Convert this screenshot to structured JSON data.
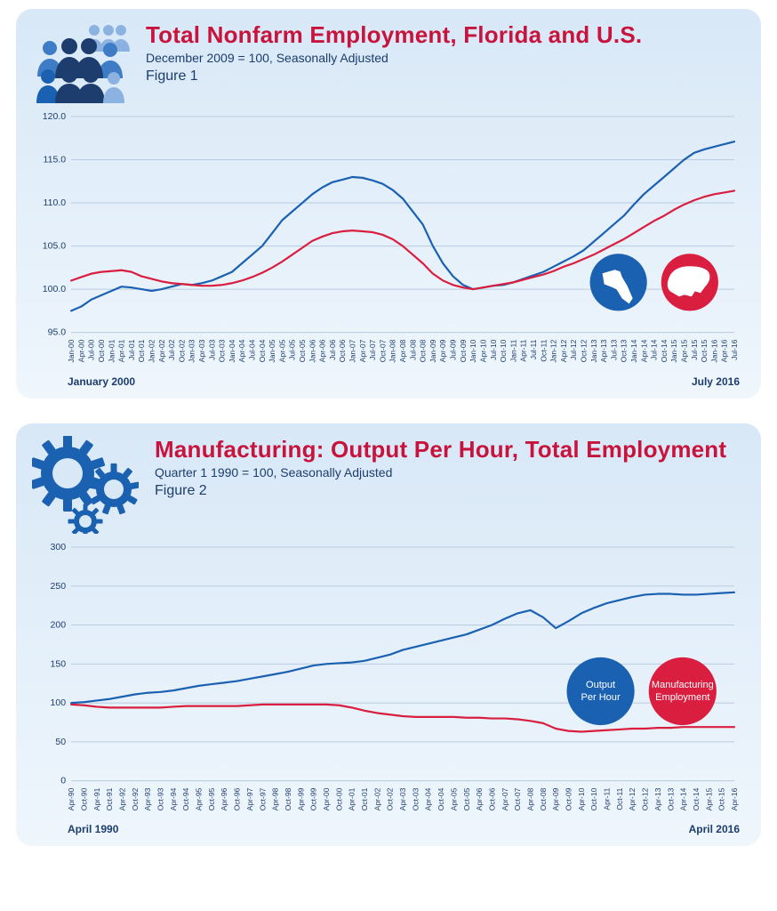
{
  "colors": {
    "blue": "#1b61b2",
    "midblue": "#3f7cc6",
    "lightblue": "#8bb2e0",
    "red": "#d91e3f",
    "darknavy": "#1c3d6e",
    "panel_top": "#d8e8f7",
    "panel_bot": "#eff6fc",
    "grid": "#b9cbe0"
  },
  "fig1": {
    "title": "Total Nonfarm Employment, Florida and U.S.",
    "subtitle": "December 2009 = 100, Seasonally Adjusted",
    "figlabel": "Figure 1",
    "range_left": "January 2000",
    "range_right": "July 2016",
    "ylim": [
      95.0,
      120.0
    ],
    "ytick_step": 5.0,
    "ytick_format": ".1f",
    "xlabels": [
      "Jan-00",
      "Apr-00",
      "Jul-00",
      "Oct-00",
      "Jan-01",
      "Apr-01",
      "Jul-01",
      "Oct-01",
      "Jan-02",
      "Apr-02",
      "Jul-02",
      "Oct-02",
      "Jan-03",
      "Apr-03",
      "Jul-03",
      "Oct-03",
      "Jan-04",
      "Apr-04",
      "Jul-04",
      "Oct-04",
      "Jan-05",
      "Apr-05",
      "Jul-05",
      "Oct-05",
      "Jan-06",
      "Apr-06",
      "Jul-06",
      "Oct-06",
      "Jan-07",
      "Apr-07",
      "Jul-07",
      "Oct-07",
      "Jan-08",
      "Apr-08",
      "Jul-08",
      "Oct-08",
      "Jan-09",
      "Apr-09",
      "Jul-09",
      "Oct-09",
      "Jan-10",
      "Apr-10",
      "Jul-10",
      "Oct-10",
      "Jan-11",
      "Apr-11",
      "Jul-11",
      "Oct-11",
      "Jan-12",
      "Apr-12",
      "Jul-12",
      "Oct-12",
      "Jan-13",
      "Apr-13",
      "Jul-13",
      "Oct-13",
      "Jan-14",
      "Apr-14",
      "Jul-14",
      "Oct-14",
      "Jan-15",
      "Apr-15",
      "Jul-15",
      "Oct-15",
      "Jan-16",
      "Apr-16",
      "Jul-16"
    ],
    "series": {
      "florida": {
        "color": "#1b61b2",
        "label": "Florida",
        "values": [
          97.5,
          98.0,
          98.8,
          99.3,
          99.8,
          100.3,
          100.2,
          100.0,
          99.8,
          100.0,
          100.3,
          100.6,
          100.5,
          100.7,
          101.0,
          101.5,
          102.0,
          103.0,
          104.0,
          105.0,
          106.5,
          108.0,
          109.0,
          110.0,
          111.0,
          111.8,
          112.4,
          112.7,
          113.0,
          112.9,
          112.6,
          112.2,
          111.5,
          110.5,
          109.0,
          107.5,
          105.0,
          103.0,
          101.5,
          100.5,
          100.0,
          100.2,
          100.4,
          100.5,
          100.8,
          101.2,
          101.6,
          102.0,
          102.6,
          103.2,
          103.8,
          104.5,
          105.5,
          106.5,
          107.5,
          108.5,
          109.8,
          111.0,
          112.0,
          113.0,
          114.0,
          115.0,
          115.8,
          116.2,
          116.5,
          116.8,
          117.1
        ]
      },
      "us": {
        "color": "#d91e3f",
        "label": "U.S.",
        "values": [
          101.0,
          101.4,
          101.8,
          102.0,
          102.1,
          102.2,
          102.0,
          101.5,
          101.2,
          100.9,
          100.7,
          100.6,
          100.5,
          100.4,
          100.4,
          100.5,
          100.7,
          101.0,
          101.4,
          101.9,
          102.5,
          103.2,
          104.0,
          104.8,
          105.6,
          106.1,
          106.5,
          106.7,
          106.8,
          106.7,
          106.6,
          106.3,
          105.8,
          105.0,
          104.0,
          103.0,
          101.8,
          101.0,
          100.5,
          100.2,
          100.0,
          100.2,
          100.4,
          100.6,
          100.8,
          101.1,
          101.4,
          101.7,
          102.1,
          102.6,
          103.0,
          103.5,
          104.0,
          104.6,
          105.2,
          105.8,
          106.5,
          107.2,
          107.9,
          108.5,
          109.2,
          109.8,
          110.3,
          110.7,
          111.0,
          111.2,
          111.4
        ]
      }
    },
    "legend": {
      "left": "florida-map",
      "right": "us-map"
    }
  },
  "fig2": {
    "title": "Manufacturing: Output Per Hour, Total Employment",
    "subtitle": "Quarter 1 1990 = 100, Seasonally Adjusted",
    "figlabel": "Figure 2",
    "range_left": "April 1990",
    "range_right": "April 2016",
    "ylim": [
      0,
      300
    ],
    "ytick_step": 50,
    "ytick_format": "d",
    "xlabels": [
      "Apr-90",
      "Oct-90",
      "Apr-91",
      "Oct-91",
      "Apr-92",
      "Oct-92",
      "Apr-93",
      "Oct-93",
      "Apr-94",
      "Oct-94",
      "Apr-95",
      "Oct-95",
      "Apr-96",
      "Oct-96",
      "Apr-97",
      "Oct-97",
      "Apr-98",
      "Oct-98",
      "Apr-99",
      "Oct-99",
      "Apr-00",
      "Oct-00",
      "Apr-01",
      "Oct-01",
      "Apr-02",
      "Oct-02",
      "Apr-03",
      "Oct-03",
      "Apr-04",
      "Oct-04",
      "Apr-05",
      "Oct-05",
      "Apr-06",
      "Oct-06",
      "Apr-07",
      "Oct-07",
      "Apr-08",
      "Oct-08",
      "Apr-09",
      "Oct-09",
      "Apr-10",
      "Oct-10",
      "Apr-11",
      "Oct-11",
      "Apr-12",
      "Oct-12",
      "Apr-13",
      "Oct-13",
      "Apr-14",
      "Oct-14",
      "Apr-15",
      "Oct-15",
      "Apr-16"
    ],
    "series": {
      "output": {
        "color": "#1b61b2",
        "label": "Output Per Hour",
        "values": [
          100,
          101,
          103,
          105,
          108,
          111,
          113,
          114,
          116,
          119,
          122,
          124,
          126,
          128,
          131,
          134,
          137,
          140,
          144,
          148,
          150,
          151,
          152,
          154,
          158,
          162,
          168,
          172,
          176,
          180,
          184,
          188,
          194,
          200,
          208,
          215,
          219,
          210,
          196,
          205,
          215,
          222,
          228,
          232,
          236,
          239,
          240,
          240,
          239,
          239,
          240,
          241,
          242
        ]
      },
      "emp": {
        "color": "#d91e3f",
        "label": "Manufacturing Employment",
        "values": [
          98,
          97,
          95,
          94,
          94,
          94,
          94,
          94,
          95,
          96,
          96,
          96,
          96,
          96,
          97,
          98,
          98,
          98,
          98,
          98,
          98,
          97,
          94,
          90,
          87,
          85,
          83,
          82,
          82,
          82,
          82,
          81,
          81,
          80,
          80,
          79,
          77,
          74,
          67,
          64,
          63,
          64,
          65,
          66,
          67,
          67,
          68,
          68,
          69,
          69,
          69,
          69,
          69
        ]
      }
    },
    "legend": {
      "left": "Output\nPer Hour",
      "right": "Manufacturing\nEmployment"
    }
  }
}
